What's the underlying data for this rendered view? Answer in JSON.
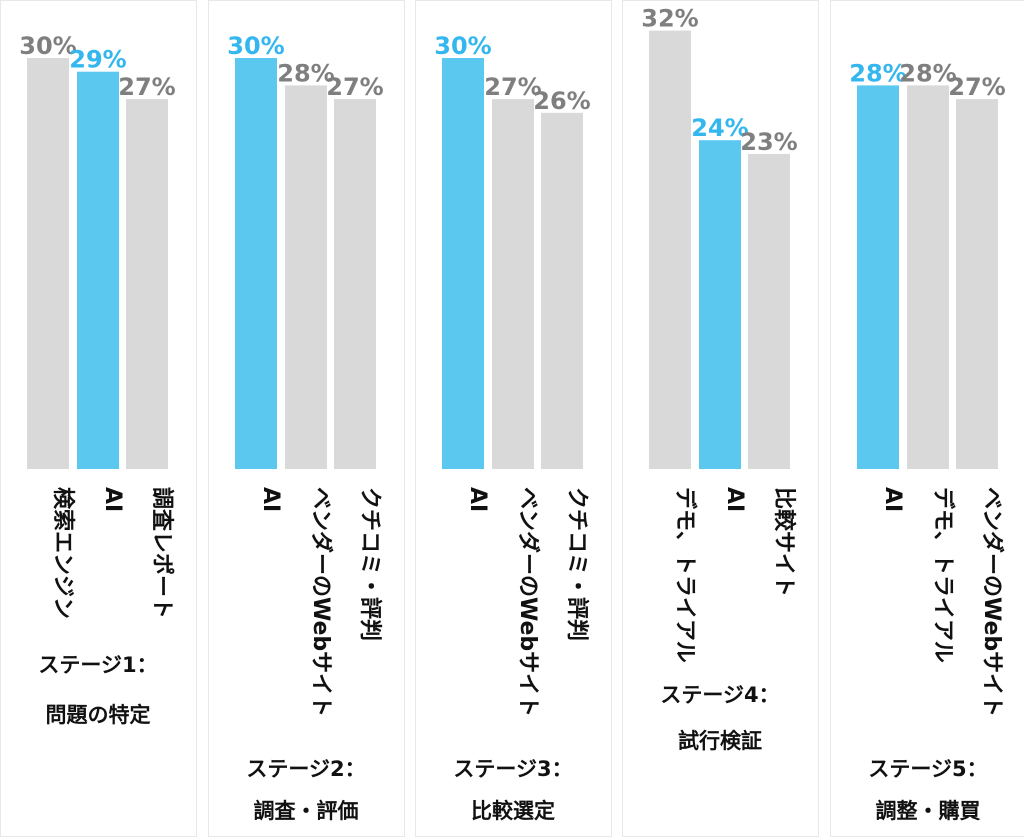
{
  "colors": {
    "highlight": "#5bc8f0",
    "bar": "#d9d9d9",
    "highlight_text": "#33b7ee",
    "value_text": "#7f7f7f",
    "panel_border": "#e8e8e8"
  },
  "chart_data": [
    {
      "type": "bar",
      "stage_label": "ステージ1：",
      "stage_name": "問題の特定",
      "categories": [
        "検索エンジン",
        "AI",
        "調査レポート"
      ],
      "values": [
        30,
        29,
        27
      ],
      "value_labels": [
        "30%",
        "29%",
        "27%"
      ],
      "highlight": [
        false,
        true,
        false
      ]
    },
    {
      "type": "bar",
      "stage_label": "ステージ2：",
      "stage_name": "調査・評価",
      "categories": [
        "AI",
        "ベンダーのWebサイト",
        "クチコミ・評判"
      ],
      "values": [
        30,
        28,
        27
      ],
      "value_labels": [
        "30%",
        "28%",
        "27%"
      ],
      "highlight": [
        true,
        false,
        false
      ]
    },
    {
      "type": "bar",
      "stage_label": "ステージ3：",
      "stage_name": "比較選定",
      "categories": [
        "AI",
        "ベンダーのWebサイト",
        "クチコミ・評判"
      ],
      "values": [
        30,
        27,
        26
      ],
      "value_labels": [
        "30%",
        "27%",
        "26%"
      ],
      "highlight": [
        true,
        false,
        false
      ]
    },
    {
      "type": "bar",
      "stage_label": "ステージ4：",
      "stage_name": "試行検証",
      "categories": [
        "デモ、トライアル",
        "AI",
        "比較サイト"
      ],
      "values": [
        32,
        24,
        23
      ],
      "value_labels": [
        "32%",
        "24%",
        "23%"
      ],
      "highlight": [
        false,
        true,
        false
      ]
    },
    {
      "type": "bar",
      "stage_label": "ステージ5：",
      "stage_name": "調整・購買",
      "categories": [
        "AI",
        "デモ、トライアル",
        "ベンダーのWebサイト"
      ],
      "values": [
        28,
        28,
        27
      ],
      "value_labels": [
        "28%",
        "28%",
        "27%"
      ],
      "highlight": [
        true,
        false,
        false
      ]
    }
  ]
}
